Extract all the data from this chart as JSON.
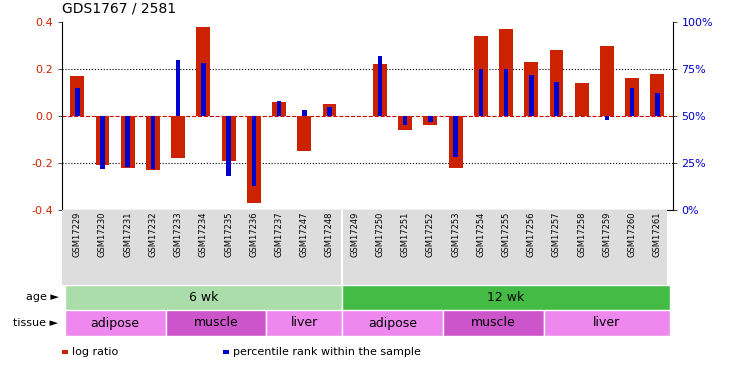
{
  "title": "GDS1767 / 2581",
  "samples": [
    "GSM17229",
    "GSM17230",
    "GSM17231",
    "GSM17232",
    "GSM17233",
    "GSM17234",
    "GSM17235",
    "GSM17236",
    "GSM17237",
    "GSM17247",
    "GSM17248",
    "GSM17249",
    "GSM17250",
    "GSM17251",
    "GSM17252",
    "GSM17253",
    "GSM17254",
    "GSM17255",
    "GSM17256",
    "GSM17257",
    "GSM17258",
    "GSM17259",
    "GSM17260",
    "GSM17261"
  ],
  "log_ratio": [
    0.17,
    -0.21,
    -0.22,
    -0.23,
    -0.18,
    0.38,
    -0.19,
    -0.37,
    0.06,
    -0.15,
    0.05,
    0.0,
    0.22,
    -0.06,
    -0.04,
    -0.22,
    0.34,
    0.37,
    0.23,
    0.28,
    0.14,
    0.3,
    0.16,
    0.18
  ],
  "pct_rank": [
    65,
    22,
    23,
    22,
    80,
    78,
    18,
    13,
    58,
    53,
    55,
    50,
    82,
    45,
    47,
    28,
    75,
    75,
    72,
    68,
    50,
    48,
    65,
    62
  ],
  "ylim": [
    -0.4,
    0.4
  ],
  "yticks_left": [
    -0.4,
    -0.2,
    0.0,
    0.2,
    0.4
  ],
  "yticks_right": [
    0,
    25,
    50,
    75,
    100
  ],
  "dotted_lines": [
    -0.2,
    0.0,
    0.2
  ],
  "bar_color_red": "#cc2200",
  "bar_color_blue": "#0000cc",
  "age_groups": [
    {
      "label": "6 wk",
      "start": 0,
      "end": 11,
      "color": "#aaddaa"
    },
    {
      "label": "12 wk",
      "start": 11,
      "end": 24,
      "color": "#44bb44"
    }
  ],
  "tissue_groups": [
    {
      "label": "adipose",
      "start": 0,
      "end": 4,
      "color": "#ee88ee"
    },
    {
      "label": "muscle",
      "start": 4,
      "end": 8,
      "color": "#cc55cc"
    },
    {
      "label": "liver",
      "start": 8,
      "end": 11,
      "color": "#ee88ee"
    },
    {
      "label": "adipose",
      "start": 11,
      "end": 15,
      "color": "#ee88ee"
    },
    {
      "label": "muscle",
      "start": 15,
      "end": 19,
      "color": "#cc55cc"
    },
    {
      "label": "liver",
      "start": 19,
      "end": 24,
      "color": "#ee88ee"
    }
  ],
  "legend_items": [
    {
      "label": "log ratio",
      "color": "#cc2200"
    },
    {
      "label": "percentile rank within the sample",
      "color": "#0000cc"
    }
  ],
  "bg_color": "#ffffff",
  "tick_label_color_left": "#cc2200",
  "tick_label_color_right": "#0000cc",
  "bar_width": 0.55,
  "blue_bar_width": 0.18,
  "age_label": "age",
  "tissue_label": "tissue"
}
